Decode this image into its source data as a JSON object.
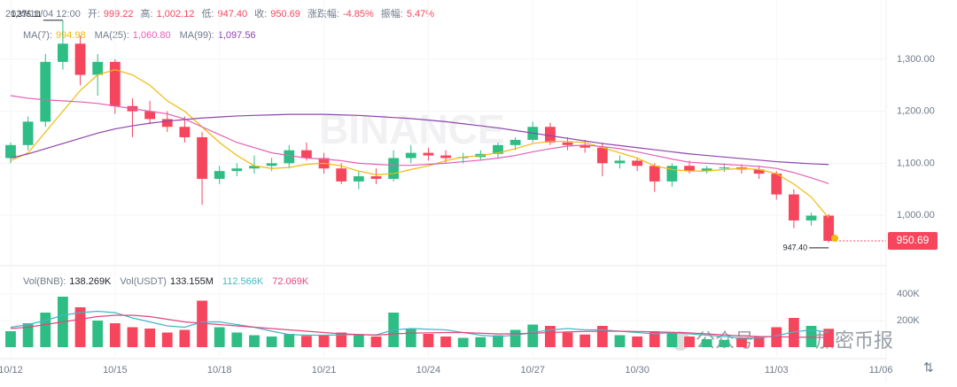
{
  "header": {
    "time": "2025/11/04 12:00",
    "fields": [
      {
        "label": "开:",
        "value": "999.22"
      },
      {
        "label": "高:",
        "value": "1,002.12"
      },
      {
        "label": "低:",
        "value": "947.40"
      },
      {
        "label": "收:",
        "value": "950.69"
      },
      {
        "label": "涨跌幅:",
        "value": "-4.85%"
      },
      {
        "label": "振幅:",
        "value": "5.47%"
      }
    ]
  },
  "watermarks": {
    "brand": "BINANCE",
    "account": "公众号",
    "name": "加密币报"
  },
  "chart_data": [
    {
      "type": "candlestick",
      "xlim": [
        -0.61,
        50.3
      ],
      "xticks": [
        {
          "value": 0,
          "label": "10/12"
        },
        {
          "value": 6,
          "label": "10/15"
        },
        {
          "value": 12,
          "label": "10/18"
        },
        {
          "value": 18,
          "label": "10/21"
        },
        {
          "value": 24,
          "label": "10/24"
        },
        {
          "value": 30,
          "label": "10/27"
        },
        {
          "value": 36,
          "label": "10/30"
        },
        {
          "value": 44,
          "label": "11/03"
        },
        {
          "value": 50,
          "label": "11/06"
        }
      ],
      "ylim": [
        903,
        1414
      ],
      "yticks": [
        {
          "value": 1000,
          "label": "1,000.00"
        },
        {
          "value": 1100,
          "label": "1,100.00"
        },
        {
          "value": 1200,
          "label": "1,200.00"
        },
        {
          "value": 1300,
          "label": "1,300.00"
        }
      ],
      "grid": true,
      "up_color": "#2ebd85",
      "down_color": "#f6465d",
      "open": [
        1110,
        1135,
        1180,
        1295,
        1330,
        1270,
        1295,
        1210,
        1200,
        1185,
        1170,
        1150,
        1070,
        1085,
        1090,
        1095,
        1100,
        1125,
        1110,
        1090,
        1065,
        1075,
        1070,
        1110,
        1120,
        1115,
        1110,
        1112,
        1118,
        1135,
        1145,
        1170,
        1140,
        1135,
        1130,
        1100,
        1105,
        1095,
        1065,
        1095,
        1085,
        1090,
        1092,
        1088,
        1080,
        1040,
        990,
        999.22
      ],
      "high": [
        1140,
        1190,
        1310,
        1375.11,
        1345,
        1310,
        1300,
        1225,
        1220,
        1200,
        1190,
        1160,
        1095,
        1100,
        1115,
        1110,
        1135,
        1140,
        1120,
        1100,
        1085,
        1090,
        1125,
        1135,
        1130,
        1125,
        1120,
        1125,
        1140,
        1150,
        1180,
        1178,
        1150,
        1145,
        1140,
        1115,
        1110,
        1100,
        1100,
        1105,
        1095,
        1100,
        1098,
        1095,
        1085,
        1050,
        1005,
        1002.12
      ],
      "low": [
        1100,
        1125,
        1170,
        1280,
        1250,
        1230,
        1195,
        1150,
        1175,
        1160,
        1140,
        1020,
        1060,
        1075,
        1080,
        1085,
        1090,
        1105,
        1080,
        1060,
        1050,
        1060,
        1065,
        1100,
        1105,
        1100,
        1100,
        1105,
        1110,
        1125,
        1140,
        1135,
        1125,
        1120,
        1075,
        1090,
        1085,
        1045,
        1055,
        1080,
        1080,
        1083,
        1080,
        1070,
        1030,
        975,
        980,
        947.4
      ],
      "close": [
        1135,
        1180,
        1295,
        1330,
        1270,
        1295,
        1210,
        1200,
        1185,
        1170,
        1150,
        1070,
        1085,
        1090,
        1095,
        1100,
        1125,
        1110,
        1090,
        1065,
        1075,
        1070,
        1110,
        1120,
        1115,
        1110,
        1112,
        1118,
        1135,
        1145,
        1170,
        1140,
        1135,
        1130,
        1100,
        1105,
        1095,
        1065,
        1095,
        1085,
        1090,
        1092,
        1088,
        1080,
        1040,
        990,
        999.22,
        950.69
      ],
      "annotations": [
        {
          "index": 3,
          "value": 1375.11,
          "label": "1,375.11"
        },
        {
          "index": 47,
          "value": 947.4,
          "label": "947.40"
        }
      ],
      "series": [
        {
          "name": "MA(7):",
          "color": "#f0b90b",
          "value_label": "994.98",
          "values": [
            1105,
            1120,
            1160,
            1200,
            1240,
            1270,
            1280,
            1270,
            1250,
            1220,
            1200,
            1170,
            1140,
            1115,
            1095,
            1090,
            1092,
            1098,
            1100,
            1095,
            1085,
            1078,
            1080,
            1088,
            1095,
            1105,
            1112,
            1115,
            1120,
            1128,
            1138,
            1142,
            1142,
            1140,
            1130,
            1120,
            1110,
            1095,
            1088,
            1085,
            1085,
            1088,
            1090,
            1088,
            1080,
            1060,
            1035,
            994.98
          ]
        },
        {
          "name": "MA(25):",
          "color": "#e35fb5",
          "value_label": "1,060.80",
          "values": [
            1230,
            1225,
            1222,
            1220,
            1218,
            1215,
            1210,
            1205,
            1200,
            1195,
            1185,
            1170,
            1155,
            1140,
            1130,
            1120,
            1115,
            1110,
            1108,
            1105,
            1100,
            1098,
            1096,
            1096,
            1098,
            1100,
            1103,
            1106,
            1110,
            1115,
            1122,
            1128,
            1133,
            1135,
            1132,
            1128,
            1122,
            1115,
            1108,
            1102,
            1100,
            1098,
            1096,
            1094,
            1090,
            1082,
            1072,
            1060.8
          ]
        },
        {
          "name": "MA(99):",
          "color": "#8e44ad",
          "value_label": "1,097.56",
          "values": [
            1110,
            1118,
            1128,
            1138,
            1148,
            1158,
            1166,
            1172,
            1177,
            1181,
            1184,
            1187,
            1189,
            1191,
            1192,
            1193,
            1194,
            1194,
            1194,
            1193,
            1192,
            1190,
            1188,
            1186,
            1183,
            1180,
            1176,
            1172,
            1168,
            1163,
            1158,
            1153,
            1148,
            1143,
            1138,
            1134,
            1130,
            1126,
            1122,
            1118,
            1115,
            1112,
            1109,
            1106,
            1103,
            1101,
            1099,
            1097.56
          ]
        }
      ]
    },
    {
      "type": "volume",
      "ylim": [
        0,
        580000
      ],
      "yticks": [
        {
          "value": 200000,
          "label": "200K"
        },
        {
          "value": 400000,
          "label": "400K"
        }
      ],
      "legend": {
        "vol_name": "Vol(BNB):",
        "vol_value": "138.269K",
        "usdt_name": "Vol(USDT)",
        "usdt_value": "133.155M"
      },
      "values": [
        120000,
        180000,
        260000,
        380000,
        300000,
        200000,
        180000,
        150000,
        140000,
        110000,
        130000,
        350000,
        150000,
        110000,
        90000,
        80000,
        100000,
        85000,
        90000,
        110000,
        95000,
        80000,
        260000,
        140000,
        100000,
        80000,
        70000,
        75000,
        90000,
        130000,
        170000,
        160000,
        110000,
        95000,
        160000,
        90000,
        80000,
        120000,
        110000,
        80000,
        60000,
        55000,
        65000,
        80000,
        150000,
        220000,
        160000,
        138269
      ],
      "series": [
        {
          "color": "#3fb8c8",
          "value_label": "112.566K",
          "values": [
            150000,
            170000,
            200000,
            240000,
            260000,
            270000,
            260000,
            220000,
            190000,
            160000,
            150000,
            190000,
            190000,
            170000,
            150000,
            120000,
            95000,
            90000,
            90000,
            92000,
            95000,
            92000,
            130000,
            140000,
            135000,
            130000,
            110000,
            90000,
            80000,
            90000,
            110000,
            130000,
            140000,
            130000,
            130000,
            120000,
            110000,
            100000,
            110000,
            100000,
            90000,
            80000,
            70000,
            70000,
            85000,
            115000,
            130000,
            112566
          ]
        },
        {
          "color": "#e8447a",
          "value_label": "72.069K",
          "values": [
            140000,
            150000,
            170000,
            190000,
            210000,
            230000,
            240000,
            240000,
            230000,
            210000,
            190000,
            180000,
            170000,
            160000,
            150000,
            140000,
            130000,
            120000,
            110000,
            100000,
            95000,
            90000,
            100000,
            105000,
            108000,
            110000,
            110000,
            105000,
            100000,
            100000,
            105000,
            110000,
            115000,
            118000,
            120000,
            120000,
            118000,
            115000,
            112000,
            108000,
            100000,
            92000,
            85000,
            80000,
            78000,
            76000,
            74000,
            72069
          ]
        }
      ]
    }
  ]
}
